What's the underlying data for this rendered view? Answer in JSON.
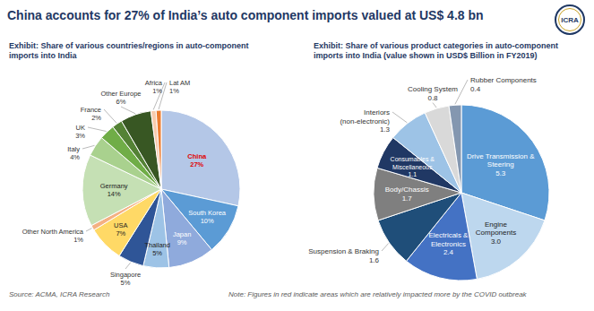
{
  "title": "China accounts for 27% of India’s auto component imports valued at US$ 4.8 bn",
  "logo": "ICRA",
  "source": "Source: ACMA, ICRA Research",
  "note": "Note: Figures in red indicate areas which are relatively impacted more by the COVID outbreak",
  "chart_data": [
    {
      "type": "pie",
      "title": "Exhibit: Share of various countries/regions in auto-component imports into India",
      "categories": [
        "China",
        "South Korea",
        "Japan",
        "Thailand",
        "Singapore",
        "USA",
        "Other North America",
        "Germany",
        "Italy",
        "UK",
        "France",
        "Other Europe",
        "Africa",
        "Lat AM"
      ],
      "values": [
        27,
        10,
        9,
        5,
        5,
        7,
        1,
        14,
        4,
        3,
        2,
        6,
        1,
        1
      ],
      "value_labels": [
        "27%",
        "10%",
        "9%",
        "5%",
        "5%",
        "7%",
        "1%",
        "14%",
        "4%",
        "3%",
        "2%",
        "6%",
        "1%",
        "1%"
      ],
      "colors": [
        "#b4c7e7",
        "#5b9bd5",
        "#8faadc",
        "#9dc3e6",
        "#2f5597",
        "#ffd966",
        "#f4b183",
        "#c5e0b4",
        "#a9d18e",
        "#70ad47",
        "#548235",
        "#385723",
        "#f8cbad",
        "#ed7d31"
      ],
      "data_labels": true
    },
    {
      "type": "pie",
      "title": "Exhibit: Share of various product categories in auto-component imports into India (value shown in USD$ Billion in FY2019)",
      "categories": [
        "Drive Transmission & Steering",
        "Engine Components",
        "Electricals & Electronics",
        "Suspension & Braking",
        "Body/Chassis",
        "Consumables & Miscellaneous",
        "Interiors (non-electronic)",
        "Cooling System",
        "Rubber Components"
      ],
      "values": [
        5.3,
        3.0,
        2.4,
        1.6,
        1.7,
        1.1,
        1.3,
        0.8,
        0.4
      ],
      "value_labels": [
        "5.3",
        "3.0",
        "2.4",
        "1.6",
        "1.7",
        "1.1",
        "1.3",
        "0.8",
        "0.4"
      ],
      "colors": [
        "#5b9bd5",
        "#bdd7ee",
        "#4472c4",
        "#1f4e79",
        "#7f7f7f",
        "#203864",
        "#9dc3e6",
        "#d9d9d9",
        "#8497b0"
      ],
      "data_labels": true
    }
  ]
}
